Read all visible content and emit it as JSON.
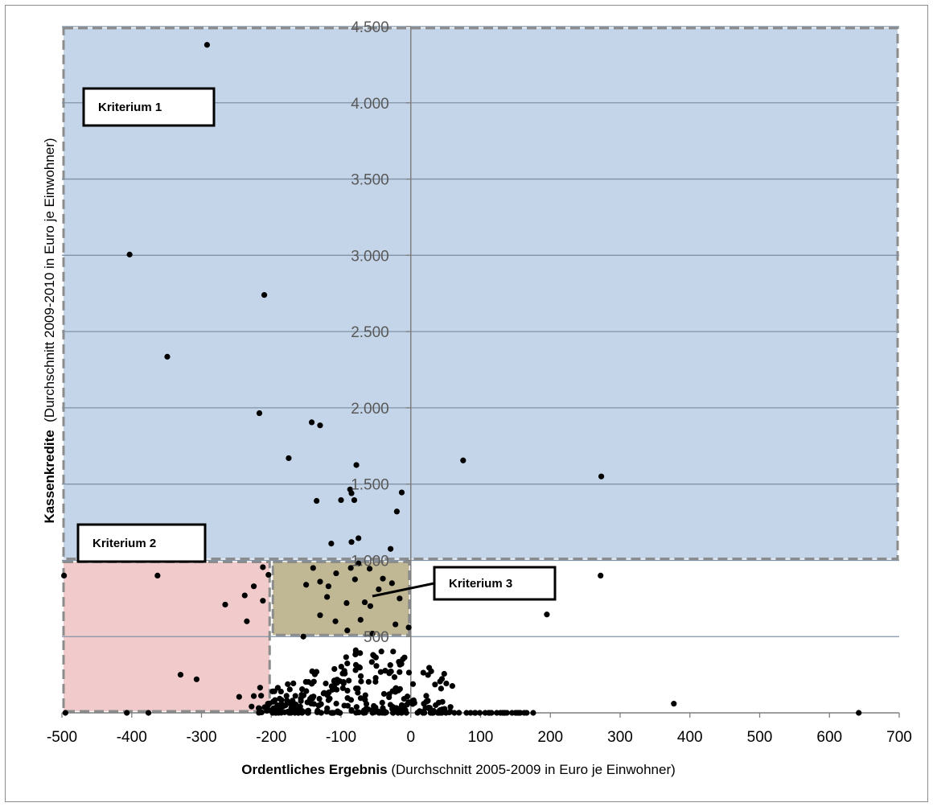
{
  "chart_data": {
    "type": "scatter",
    "xlabel_bold": "Ordentliches Ergebnis",
    "xlabel_rest": " (Durchschnitt 2005-2009 in Euro je Einwohner)",
    "ylabel_bold": "Kassenkredite",
    "ylabel_rest": "  (Durchschnitt 2009-2010 in Euro je Einwohner)",
    "xlim": [
      -500,
      700
    ],
    "ylim": [
      0,
      4500
    ],
    "x_ticks": [
      -500,
      -400,
      -300,
      -200,
      -100,
      0,
      100,
      200,
      300,
      400,
      500,
      600,
      700
    ],
    "x_tick_labels": [
      "-500",
      "-400",
      "-300",
      "-200",
      "-100",
      "0",
      "100",
      "200",
      "300",
      "400",
      "500",
      "600",
      "700"
    ],
    "y_ticks": [
      500,
      1000,
      1500,
      2000,
      2500,
      3000,
      3500,
      4000,
      4500
    ],
    "y_tick_labels": [
      "500",
      "1.000",
      "1.500",
      "2.000",
      "2.500",
      "3.000",
      "3.500",
      "4.000",
      "4.500"
    ],
    "grid": "horizontal",
    "regions": [
      {
        "label": "Kriterium 1",
        "x": [
          -500,
          700
        ],
        "y": [
          1000,
          4500
        ],
        "color": "#95b3d7"
      },
      {
        "label": "Kriterium 2",
        "x": [
          -500,
          -200
        ],
        "y": [
          0,
          1000
        ],
        "color": "#e6a0a0"
      },
      {
        "label": "Kriterium 3",
        "x": [
          -200,
          0
        ],
        "y": [
          500,
          1000
        ],
        "color": "#8c7b3c"
      }
    ],
    "labels": {
      "k1": "Kriterium 1",
      "k2": "Kriterium 2",
      "k3": "Kriterium 3"
    },
    "colors": {
      "point": "#000000",
      "axis": "#7f7f7f",
      "grid": "#8093a6",
      "region_border": "#8c8c8c"
    },
    "series": [
      {
        "points": [
          [
            -292,
            4380
          ],
          [
            -403,
            3005
          ],
          [
            -210,
            2740
          ],
          [
            -349,
            2335
          ],
          [
            -217,
            1965
          ],
          [
            -142,
            1905
          ],
          [
            -130,
            1885
          ],
          [
            -175,
            1670
          ],
          [
            -78,
            1625
          ],
          [
            -87,
            1465
          ],
          [
            -85,
            1440
          ],
          [
            -81,
            1395
          ],
          [
            -135,
            1390
          ],
          [
            -100,
            1395
          ],
          [
            -20,
            1320
          ],
          [
            -13,
            1445
          ],
          [
            -29,
            1075
          ],
          [
            -407,
            1085
          ],
          [
            -323,
            1130
          ],
          [
            -114,
            1110
          ],
          [
            -75,
            1145
          ],
          [
            -85,
            1120
          ],
          [
            75,
            1655
          ],
          [
            273,
            1550
          ],
          [
            -497,
            900
          ],
          [
            -363,
            900
          ],
          [
            -212,
            955
          ],
          [
            -204,
            905
          ],
          [
            -225,
            830
          ],
          [
            -238,
            770
          ],
          [
            -212,
            735
          ],
          [
            -266,
            710
          ],
          [
            -235,
            600
          ],
          [
            -330,
            250
          ],
          [
            -307,
            220
          ],
          [
            -246,
            105
          ],
          [
            -225,
            110
          ],
          [
            -216,
            165
          ],
          [
            -140,
            950
          ],
          [
            -130,
            860
          ],
          [
            -118,
            830
          ],
          [
            -150,
            840
          ],
          [
            -130,
            640
          ],
          [
            -154,
            500
          ],
          [
            -120,
            760
          ],
          [
            -108,
            600
          ],
          [
            -92,
            720
          ],
          [
            -66,
            725
          ],
          [
            -75,
            980
          ],
          [
            -80,
            875
          ],
          [
            -72,
            610
          ],
          [
            -91,
            540
          ],
          [
            -40,
            880
          ],
          [
            -27,
            850
          ],
          [
            -16,
            750
          ],
          [
            -59,
            945
          ],
          [
            -86,
            950
          ],
          [
            -46,
            810
          ],
          [
            -55,
            520
          ],
          [
            -22,
            580
          ],
          [
            -3,
            560
          ],
          [
            -107,
            915
          ],
          [
            -58,
            700
          ],
          [
            272,
            900
          ],
          [
            195,
            645
          ],
          [
            377,
            60
          ],
          [
            642,
            0
          ],
          [
            -495,
            0
          ],
          [
            -407,
            0
          ],
          [
            -376,
            0
          ]
        ]
      }
    ]
  }
}
